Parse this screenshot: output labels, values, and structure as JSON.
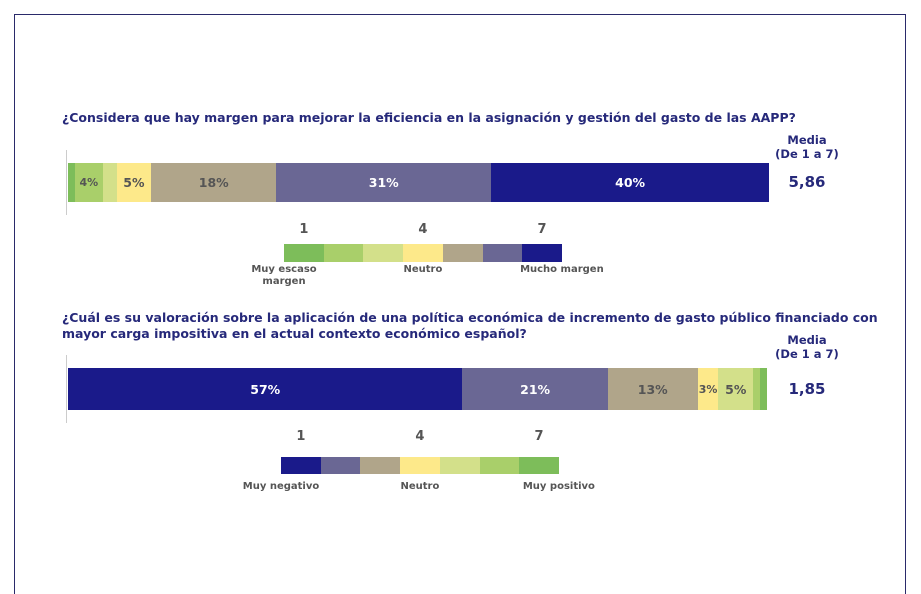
{
  "chart_data": [
    {
      "type": "stacked-bar",
      "title": "¿Considera que hay margen para mejorar la eficiencia en la asignación y gestión del gasto de las AAPP?",
      "mean_title": "Media",
      "mean_subtitle": "(De 1 a 7)",
      "mean": "5,86",
      "xlim": [
        0,
        100
      ],
      "categories": [
        "1",
        null,
        null,
        "4",
        null,
        null,
        "7"
      ],
      "values": [
        1,
        4,
        2,
        5,
        18,
        31,
        40
      ],
      "value_labels": [
        null,
        "4%",
        null,
        "5%",
        "18%",
        "31%",
        "40%"
      ],
      "colors": [
        "#7dbd5a",
        "#a9cf6a",
        "#d3e08a",
        "#fde98a",
        "#b0a58a",
        "#6a6794",
        "#1a1a8a"
      ],
      "legend_labels": [
        "Muy escaso margen",
        "Neutro",
        "Mucho margen"
      ]
    },
    {
      "type": "stacked-bar",
      "title": "¿Cuál es su valoración sobre la aplicación de una política económica de incremento de gasto público financiado con mayor carga impositiva en el actual contexto económico español?",
      "mean_title": "Media",
      "mean_subtitle": "(De 1 a 7)",
      "mean": "1,85",
      "xlim": [
        0,
        100
      ],
      "categories": [
        "1",
        null,
        null,
        "4",
        null,
        null,
        "7"
      ],
      "values": [
        57,
        21,
        13,
        3,
        5,
        1,
        1
      ],
      "value_labels": [
        "57%",
        "21%",
        "13%",
        "3%",
        "5%",
        null,
        null
      ],
      "colors": [
        "#1a1a8a",
        "#6a6794",
        "#b0a58a",
        "#fde98a",
        "#d3e08a",
        "#a9cf6a",
        "#7dbd5a"
      ],
      "legend_labels": [
        "Muy negativo",
        "Neutro",
        "Muy positivo"
      ]
    }
  ]
}
